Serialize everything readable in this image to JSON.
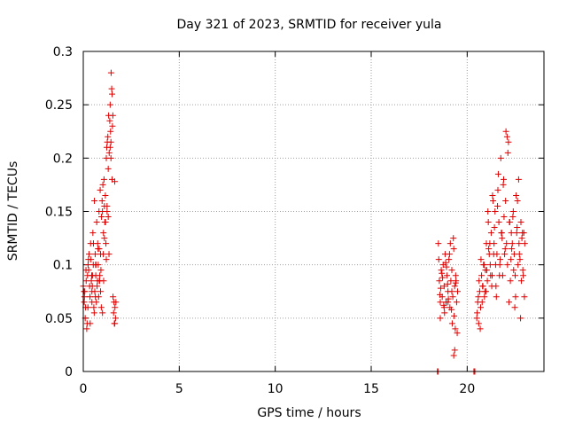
{
  "chart_data": {
    "type": "scatter",
    "title": "Day 321 of 2023, SRMTID for receiver yula",
    "xlabel": "GPS time / hours",
    "ylabel": "SRMTID / TECUs",
    "xlim": [
      0,
      24
    ],
    "ylim": [
      0,
      0.3
    ],
    "x_ticks": [
      0,
      5,
      10,
      15,
      20
    ],
    "x_tick_labels": [
      "0",
      "5",
      "10",
      "15",
      "20"
    ],
    "y_ticks": [
      0,
      0.05,
      0.1,
      0.15,
      0.2,
      0.25,
      0.3
    ],
    "y_tick_labels": [
      "0",
      "0.05",
      "0.1",
      "0.15",
      "0.2",
      "0.25",
      "0.3"
    ],
    "grid": true,
    "marker": "plus",
    "series": [
      {
        "color": "#e00000",
        "x": [
          0.0,
          0.05,
          0.08,
          0.12,
          0.15,
          0.2,
          0.22,
          0.25,
          0.28,
          0.3,
          0.35,
          0.38,
          0.4,
          0.42,
          0.45,
          0.48,
          0.5,
          0.52,
          0.55,
          0.58,
          0.6,
          0.62,
          0.65,
          0.68,
          0.7,
          0.72,
          0.75,
          0.78,
          0.8,
          0.82,
          0.85,
          0.88,
          0.9,
          0.92,
          0.95,
          0.98,
          1.0,
          1.02,
          1.05,
          1.08,
          1.1,
          1.12,
          1.15,
          1.18,
          1.2,
          1.22,
          1.25,
          1.28,
          1.3,
          1.32,
          1.35,
          1.38,
          1.4,
          1.42,
          1.45,
          1.48,
          1.5,
          1.52,
          1.55,
          1.58,
          1.6,
          1.62,
          1.65,
          1.68,
          1.7,
          0.1,
          0.18,
          0.33,
          0.45,
          0.57,
          0.66,
          0.74,
          0.83,
          0.9,
          1.0,
          1.1,
          1.2,
          1.3,
          1.4,
          1.5,
          0.06,
          0.14,
          0.27,
          0.36,
          0.47,
          0.53,
          0.63,
          0.77,
          0.86,
          0.94,
          1.06,
          1.16,
          1.24,
          1.34,
          1.44,
          1.54,
          1.64,
          0.04,
          0.24,
          0.44,
          0.64,
          0.84,
          1.04,
          1.24,
          1.44,
          1.64,
          18.5,
          18.55,
          18.6,
          18.65,
          18.7,
          18.75,
          18.8,
          18.85,
          18.9,
          18.95,
          19.0,
          19.05,
          19.1,
          19.15,
          19.2,
          19.25,
          19.3,
          19.35,
          19.4,
          19.45,
          19.5,
          18.52,
          18.62,
          18.72,
          18.82,
          18.92,
          19.02,
          19.12,
          19.22,
          19.32,
          19.42,
          18.58,
          18.68,
          18.78,
          18.88,
          18.98,
          19.08,
          19.18,
          19.28,
          19.38,
          19.48,
          18.6,
          18.8,
          19.0,
          19.2,
          19.4,
          19.35,
          19.3,
          20.5,
          20.55,
          20.6,
          20.65,
          20.7,
          20.75,
          20.8,
          20.85,
          20.9,
          20.95,
          21.0,
          21.05,
          21.1,
          21.15,
          21.2,
          21.25,
          21.3,
          21.35,
          21.4,
          21.45,
          21.5,
          21.55,
          21.6,
          21.65,
          21.7,
          21.75,
          21.8,
          21.85,
          21.9,
          21.95,
          22.0,
          22.05,
          22.1,
          22.15,
          22.2,
          22.25,
          22.3,
          22.35,
          22.4,
          22.45,
          22.5,
          22.55,
          22.6,
          22.65,
          22.7,
          22.75,
          22.8,
          22.85,
          22.9,
          22.95,
          23.0,
          20.52,
          20.62,
          20.72,
          20.82,
          20.92,
          21.02,
          21.12,
          21.22,
          21.32,
          21.42,
          21.52,
          21.62,
          21.72,
          21.82,
          21.92,
          22.02,
          22.12,
          22.22,
          22.32,
          22.42,
          22.52,
          22.62,
          22.72,
          22.82,
          22.92,
          20.58,
          20.68,
          20.78,
          20.88,
          20.98,
          21.08,
          21.18,
          21.28,
          21.38,
          21.48,
          21.58,
          21.68,
          21.78,
          21.88,
          21.98,
          22.08,
          22.18,
          22.28,
          22.38,
          22.48,
          22.58,
          22.68,
          22.78,
          22.88,
          22.98,
          18.45,
          18.48,
          20.35,
          20.4
        ],
        "y": [
          0.08,
          0.065,
          0.075,
          0.06,
          0.085,
          0.045,
          0.09,
          0.1,
          0.095,
          0.11,
          0.07,
          0.12,
          0.105,
          0.085,
          0.075,
          0.09,
          0.13,
          0.1,
          0.06,
          0.16,
          0.075,
          0.11,
          0.09,
          0.065,
          0.14,
          0.08,
          0.12,
          0.1,
          0.07,
          0.15,
          0.085,
          0.17,
          0.11,
          0.095,
          0.145,
          0.16,
          0.15,
          0.175,
          0.13,
          0.18,
          0.155,
          0.14,
          0.165,
          0.12,
          0.2,
          0.21,
          0.215,
          0.22,
          0.19,
          0.24,
          0.205,
          0.235,
          0.25,
          0.225,
          0.28,
          0.265,
          0.26,
          0.23,
          0.07,
          0.055,
          0.065,
          0.045,
          0.06,
          0.05,
          0.065,
          0.05,
          0.04,
          0.08,
          0.065,
          0.055,
          0.1,
          0.085,
          0.115,
          0.075,
          0.055,
          0.125,
          0.105,
          0.145,
          0.21,
          0.18,
          0.07,
          0.095,
          0.105,
          0.045,
          0.08,
          0.12,
          0.07,
          0.115,
          0.09,
          0.06,
          0.085,
          0.14,
          0.15,
          0.11,
          0.2,
          0.24,
          0.178,
          0.075,
          0.06,
          0.09,
          0.1,
          0.085,
          0.11,
          0.155,
          0.215,
          0.045,
          0.12,
          0.085,
          0.065,
          0.095,
          0.07,
          0.1,
          0.08,
          0.11,
          0.065,
          0.09,
          0.075,
          0.105,
          0.06,
          0.085,
          0.095,
          0.07,
          0.115,
          0.08,
          0.09,
          0.065,
          0.075,
          0.105,
          0.078,
          0.088,
          0.055,
          0.098,
          0.068,
          0.12,
          0.045,
          0.052,
          0.085,
          0.072,
          0.092,
          0.062,
          0.102,
          0.082,
          0.11,
          0.058,
          0.125,
          0.04,
          0.036,
          0.05,
          0.06,
          0.065,
          0.075,
          0.083,
          0.02,
          0.015,
          0.05,
          0.065,
          0.045,
          0.075,
          0.06,
          0.09,
          0.08,
          0.1,
          0.07,
          0.095,
          0.12,
          0.085,
          0.14,
          0.11,
          0.1,
          0.13,
          0.09,
          0.16,
          0.12,
          0.15,
          0.08,
          0.11,
          0.17,
          0.14,
          0.1,
          0.2,
          0.13,
          0.09,
          0.18,
          0.11,
          0.16,
          0.12,
          0.1,
          0.215,
          0.14,
          0.085,
          0.13,
          0.12,
          0.15,
          0.11,
          0.09,
          0.165,
          0.135,
          0.1,
          0.12,
          0.105,
          0.14,
          0.125,
          0.095,
          0.13,
          0.12,
          0.055,
          0.085,
          0.105,
          0.08,
          0.075,
          0.095,
          0.115,
          0.09,
          0.165,
          0.135,
          0.07,
          0.185,
          0.105,
          0.125,
          0.145,
          0.225,
          0.205,
          0.14,
          0.115,
          0.095,
          0.07,
          0.16,
          0.11,
          0.085,
          0.09,
          0.07,
          0.04,
          0.065,
          0.1,
          0.075,
          0.15,
          0.12,
          0.08,
          0.11,
          0.1,
          0.155,
          0.09,
          0.13,
          0.175,
          0.115,
          0.22,
          0.065,
          0.105,
          0.145,
          0.06,
          0.13,
          0.18,
          0.05,
          0.13,
          0.07,
          0.0,
          0.0,
          0.0,
          0.0
        ]
      }
    ]
  }
}
